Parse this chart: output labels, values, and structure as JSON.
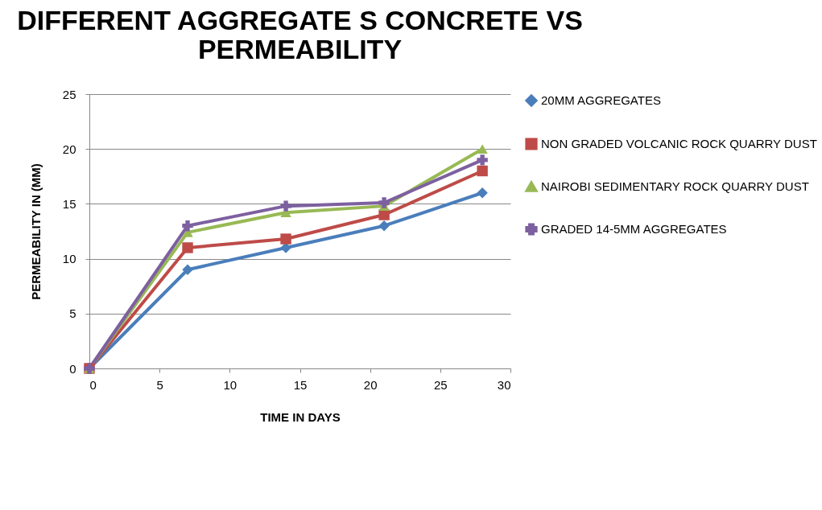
{
  "chart_data": {
    "type": "line",
    "title": [
      "DIFFERENT AGGREGATE S CONCRETE VS",
      "PERMEABILITY"
    ],
    "xlabel": "TIME IN DAYS",
    "ylabel": "PERMEABILITY IN (MM)",
    "x": [
      0,
      7,
      14,
      21,
      28
    ],
    "series": [
      {
        "name": "20MM AGGREGATES",
        "color": "#4a7ebb",
        "marker": "diamond",
        "values": [
          0,
          9,
          11,
          13,
          16
        ]
      },
      {
        "name": "NON GRADED VOLCANIC ROCK QUARRY DUST",
        "color": "#be4b48",
        "marker": "square",
        "values": [
          0,
          11,
          11.8,
          14,
          18
        ]
      },
      {
        "name": "NAIROBI SEDIMENTARY ROCK QUARRY DUST",
        "color": "#98b954",
        "marker": "triangle",
        "values": [
          0,
          12.4,
          14.2,
          14.8,
          20
        ]
      },
      {
        "name": "GRADED 14-5MM AGGREGATES",
        "color": "#7d60a0",
        "marker": "cross",
        "values": [
          0,
          13,
          14.8,
          15.1,
          19
        ]
      }
    ],
    "xlim": [
      0,
      30
    ],
    "xticks": [
      0,
      5,
      10,
      15,
      20,
      25,
      30
    ],
    "ylim": [
      0,
      25
    ],
    "yticks": [
      0,
      5,
      10,
      15,
      20,
      25
    ],
    "grid": "y",
    "legend": "right",
    "line_style": "solid"
  }
}
